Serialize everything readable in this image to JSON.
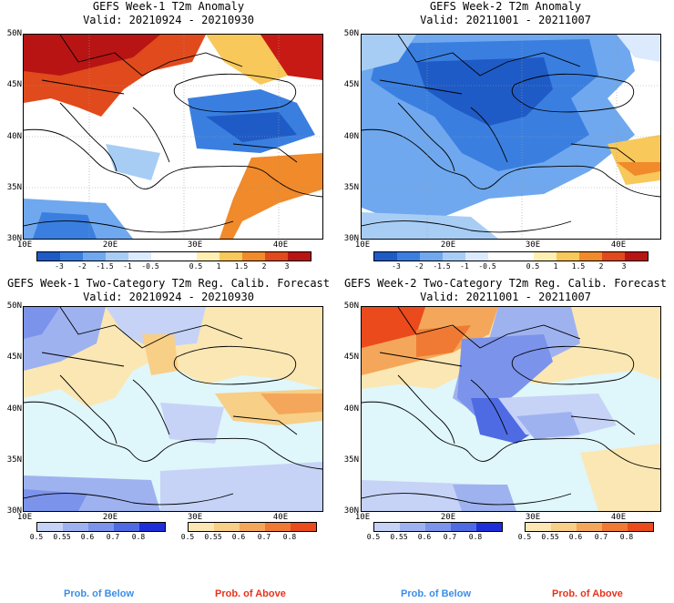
{
  "panels": [
    {
      "title": "GEFS Week-1 T2m Anomaly",
      "valid": "Valid: 20210924 - 20210930",
      "y_ticks": [
        "50N",
        "45N",
        "40N",
        "35N",
        "30N"
      ],
      "x_ticks": [
        "10E",
        "20E",
        "30E",
        "40E"
      ],
      "colorbar": {
        "colors": [
          "#1f5bc6",
          "#3a7fe0",
          "#6fa8ee",
          "#a8cdf5",
          "#dbeafc",
          "#ffffff",
          "#ffffff",
          "#fdf0b2",
          "#f8c85a",
          "#f08a2a",
          "#e04a1c",
          "#b81414"
        ],
        "labels": [
          "-3",
          "-2",
          "-1.5",
          "-1",
          "-0.5",
          "0.5",
          "1",
          "1.5",
          "2",
          "3"
        ]
      }
    },
    {
      "title": "GEFS Week-2 T2m Anomaly",
      "valid": "Valid: 20211001 - 20211007",
      "y_ticks": [
        "50N",
        "45N",
        "40N",
        "35N",
        "30N"
      ],
      "x_ticks": [
        "10E",
        "20E",
        "30E",
        "40E"
      ],
      "colorbar": {
        "colors": [
          "#1f5bc6",
          "#3a7fe0",
          "#6fa8ee",
          "#a8cdf5",
          "#dbeafc",
          "#ffffff",
          "#ffffff",
          "#fdf0b2",
          "#f8c85a",
          "#f08a2a",
          "#e04a1c",
          "#b81414"
        ],
        "labels": [
          "-3",
          "-2",
          "-1.5",
          "-1",
          "-0.5",
          "0.5",
          "1",
          "1.5",
          "2",
          "3"
        ]
      }
    },
    {
      "title": "GEFS Week-1 Two-Category T2m Reg. Calib. Forecast",
      "valid": "Valid: 20210924 - 20210930",
      "y_ticks": [
        "50N",
        "45N",
        "40N",
        "35N",
        "30N"
      ],
      "x_ticks": [
        "10E",
        "20E",
        "30E",
        "40E"
      ],
      "below_bar": {
        "colors": [
          "#c6d3f7",
          "#9fb2f0",
          "#7b93ea",
          "#4f6be4",
          "#1f2fd8"
        ],
        "labels": [
          "0.5",
          "0.55",
          "0.6",
          "0.7",
          "0.8"
        ]
      },
      "above_bar": {
        "colors": [
          "#fbe7b3",
          "#f8cf86",
          "#f4a75a",
          "#f07a34",
          "#ea4a1c"
        ],
        "labels": [
          "0.5",
          "0.55",
          "0.6",
          "0.7",
          "0.8"
        ]
      }
    },
    {
      "title": "GEFS Week-2 Two-Category T2m Reg. Calib. Forecast",
      "valid": "Valid: 20211001 - 20211007",
      "y_ticks": [
        "50N",
        "45N",
        "40N",
        "35N",
        "30N"
      ],
      "x_ticks": [
        "10E",
        "20E",
        "30E",
        "40E"
      ],
      "below_bar": {
        "colors": [
          "#c6d3f7",
          "#9fb2f0",
          "#7b93ea",
          "#4f6be4",
          "#1f2fd8"
        ],
        "labels": [
          "0.5",
          "0.55",
          "0.6",
          "0.7",
          "0.8"
        ]
      },
      "above_bar": {
        "colors": [
          "#fbe7b3",
          "#f8cf86",
          "#f4a75a",
          "#f07a34",
          "#ea4a1c"
        ],
        "labels": [
          "0.5",
          "0.55",
          "0.6",
          "0.7",
          "0.8"
        ]
      }
    }
  ],
  "footer": {
    "below_label": "Prob. of Below",
    "above_label": "Prob. of Above",
    "below_color": "#3a8ee8",
    "above_color": "#e8321c"
  },
  "colors": {
    "sea": "#dff6fb",
    "border": "#000000"
  }
}
